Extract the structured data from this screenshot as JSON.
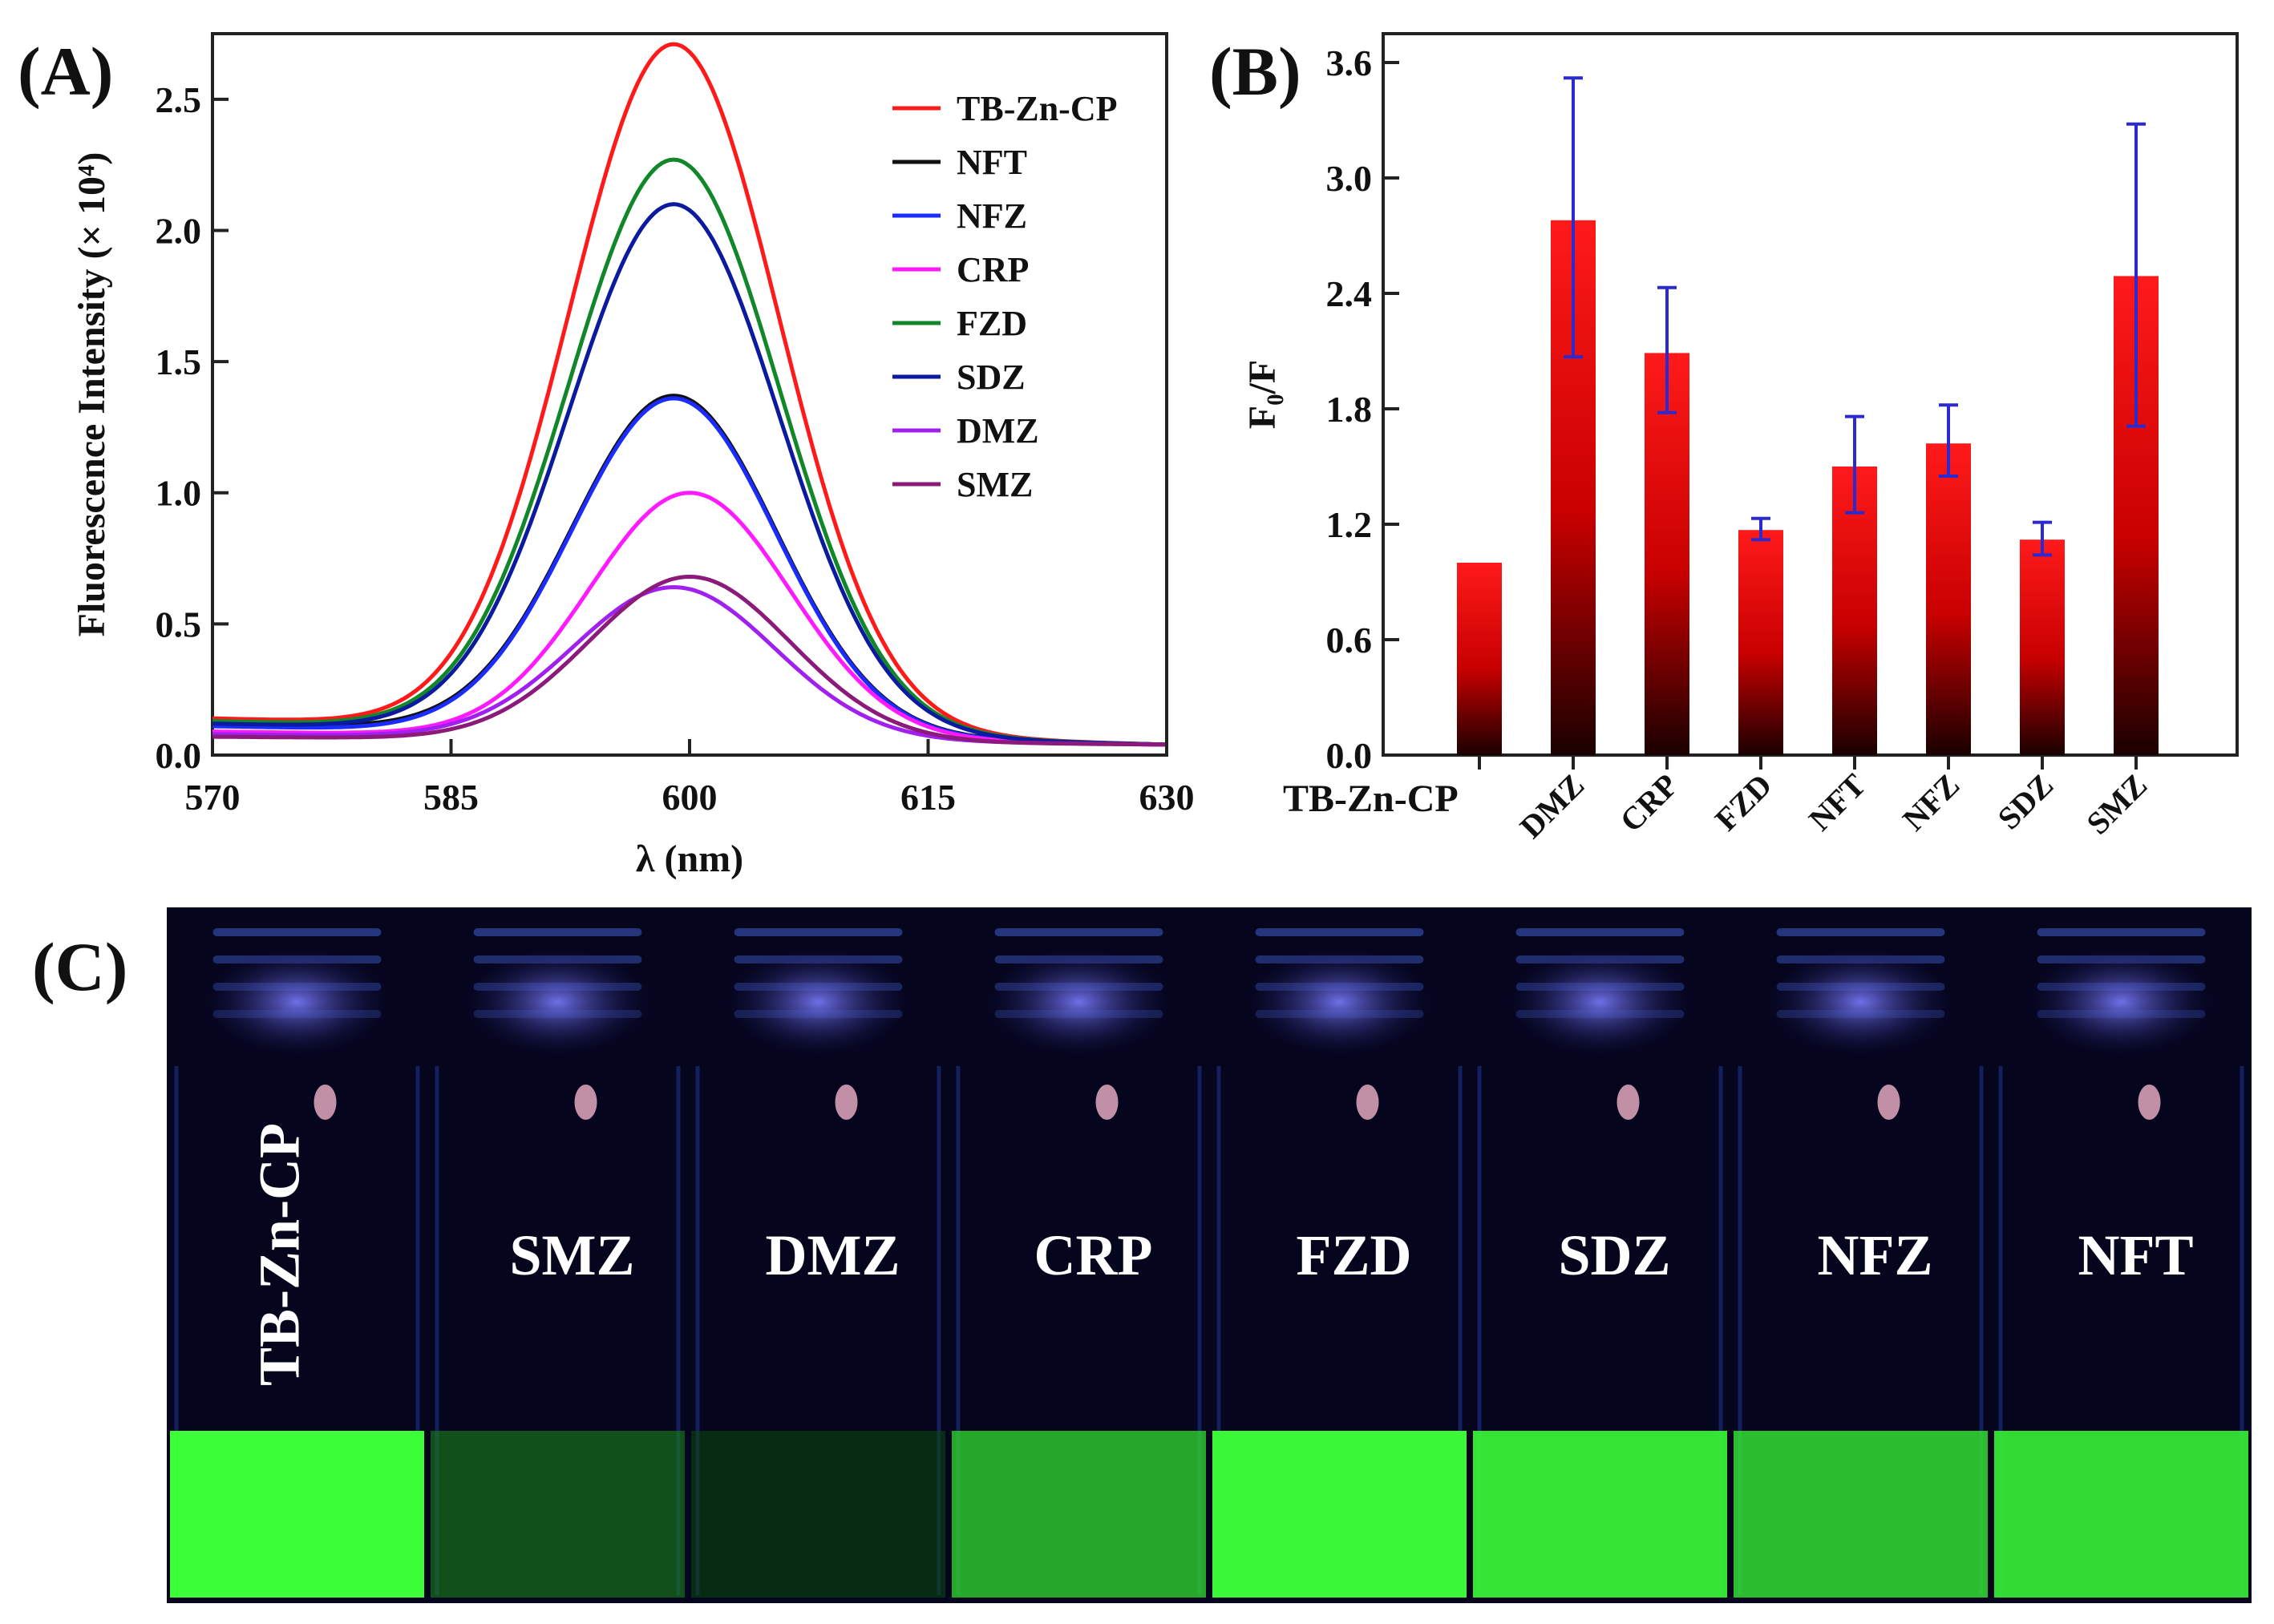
{
  "panels": {
    "A": "(A)",
    "B": "(B)",
    "C": "(C)"
  },
  "chart_data": [
    {
      "type": "line",
      "panel": "A",
      "title": "",
      "xlabel": "λ (nm)",
      "ylabel": "Fluorescence Intensity (× 10⁴)",
      "xlim": [
        570,
        630
      ],
      "ylim": [
        0,
        2.75
      ],
      "xticks": [
        570,
        585,
        600,
        615,
        630
      ],
      "yticks": [
        0.0,
        0.5,
        1.0,
        1.5,
        2.0,
        2.5
      ],
      "legend_position": "top-right",
      "series": [
        {
          "name": "TB-Zn-CP",
          "color": "#ff1a1a",
          "peak_x": 599.0,
          "peak_y": 2.71,
          "sigma": 6.6,
          "baseline_start": 0.14,
          "baseline_end": 0.04
        },
        {
          "name": "NFT",
          "color": "#111111",
          "peak_x": 599.0,
          "peak_y": 1.37,
          "sigma": 6.4,
          "baseline_start": 0.12,
          "baseline_end": 0.04
        },
        {
          "name": "NFZ",
          "color": "#1a2cff",
          "peak_x": 599.0,
          "peak_y": 1.36,
          "sigma": 6.4,
          "baseline_start": 0.11,
          "baseline_end": 0.04
        },
        {
          "name": "CRP",
          "color": "#ff1aff",
          "peak_x": 600.0,
          "peak_y": 1.0,
          "sigma": 6.3,
          "baseline_start": 0.09,
          "baseline_end": 0.04
        },
        {
          "name": "FZD",
          "color": "#12872a",
          "peak_x": 599.0,
          "peak_y": 2.27,
          "sigma": 6.6,
          "baseline_start": 0.13,
          "baseline_end": 0.04
        },
        {
          "name": "SDZ",
          "color": "#0b1a9e",
          "peak_x": 599.0,
          "peak_y": 2.1,
          "sigma": 6.6,
          "baseline_start": 0.12,
          "baseline_end": 0.04
        },
        {
          "name": "DMZ",
          "color": "#a020f0",
          "peak_x": 599.0,
          "peak_y": 0.64,
          "sigma": 6.3,
          "baseline_start": 0.08,
          "baseline_end": 0.04
        },
        {
          "name": "SMZ",
          "color": "#8b1a7a",
          "peak_x": 600.0,
          "peak_y": 0.68,
          "sigma": 6.3,
          "baseline_start": 0.07,
          "baseline_end": 0.04
        }
      ]
    },
    {
      "type": "bar",
      "panel": "B",
      "title": "",
      "xlabel": "",
      "ylabel": "F₀/F",
      "ylim": [
        0,
        3.75
      ],
      "yticks": [
        "0.0",
        "0.6",
        "1.2",
        "1.8",
        "2.4",
        "3.0",
        "3.6"
      ],
      "categories": [
        "TB-Zn-CP",
        "DMZ",
        "CRP",
        "FZD",
        "NFT",
        "NFZ",
        "SDZ",
        "SMZ"
      ],
      "values": [
        1.0,
        2.78,
        2.09,
        1.17,
        1.5,
        1.62,
        1.12,
        2.49
      ],
      "error_low": [
        1.0,
        2.07,
        1.78,
        1.12,
        1.26,
        1.45,
        1.04,
        1.71
      ],
      "error_high": [
        1.0,
        3.52,
        2.43,
        1.23,
        1.76,
        1.82,
        1.21,
        3.28
      ],
      "bar_color_top": "#ff1a1a",
      "bar_color_bottom": "#1a0000",
      "error_color": "#2a2ad0"
    }
  ],
  "photo": {
    "labels": [
      "TB-Zn-CP",
      "SMZ",
      "DMZ",
      "CRP",
      "FZD",
      "SDZ",
      "NFZ",
      "NFT"
    ],
    "liquid_brightness": [
      1.0,
      0.42,
      0.22,
      0.75,
      0.98,
      0.93,
      0.82,
      0.9
    ],
    "liquid_color": "#3cff3a",
    "background_color": "#05051e"
  }
}
